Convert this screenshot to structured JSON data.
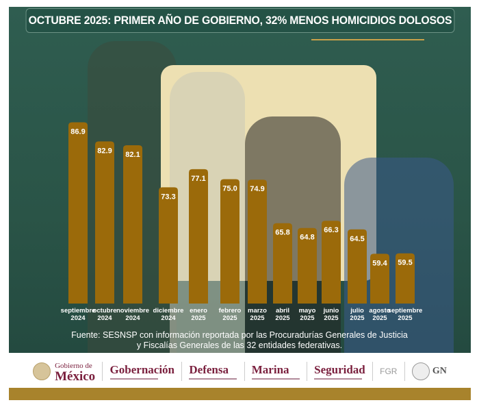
{
  "title": "OCTUBRE 2025: PRIMER AÑO DE GOBIERNO, 32% MENOS HOMICIDIOS DOLOSOS",
  "colors": {
    "bar": "#9b6a0a",
    "background": "#2d5a4c",
    "panel": "#ede0b2",
    "accent_gold": "#a8832c"
  },
  "chart_data": {
    "type": "bar",
    "title": "",
    "categories": [
      "septiembre 2024",
      "octubre 2024",
      "noviembre 2024",
      "diciembre 2024",
      "enero 2025",
      "febrero 2025",
      "marzo 2025",
      "abril 2025",
      "mayo 2025",
      "junio 2025",
      "julio 2025",
      "agosto 2025",
      "septiembre 2025"
    ],
    "category_lines": [
      [
        "septiembre",
        "2024"
      ],
      [
        "octubre",
        "2024"
      ],
      [
        "noviembre",
        "2024"
      ],
      [
        "diciembre",
        "2024"
      ],
      [
        "enero",
        "2025"
      ],
      [
        "febrero",
        "2025"
      ],
      [
        "marzo",
        "2025"
      ],
      [
        "abril",
        "2025"
      ],
      [
        "mayo",
        "2025"
      ],
      [
        "junio",
        "2025"
      ],
      [
        "julio",
        "2025"
      ],
      [
        "agosto",
        "2025"
      ],
      [
        "septiembre",
        "2025"
      ]
    ],
    "values": [
      86.9,
      82.9,
      82.1,
      73.3,
      77.1,
      75.0,
      74.9,
      65.8,
      64.8,
      66.3,
      64.5,
      59.4,
      59.5
    ],
    "value_labels": [
      "86.9",
      "82.9",
      "82.1",
      "73.3",
      "77.1",
      "75.0",
      "74.9",
      "65.8",
      "64.8",
      "66.3",
      "64.5",
      "59.4",
      "59.5"
    ],
    "ylim": [
      49,
      95
    ],
    "xlabel": "",
    "ylabel": "",
    "grid": false,
    "legend": "none"
  },
  "source": {
    "line1": "Fuente: SESNSP con información reportada por las Procuradurías Generales de Justicia",
    "line2": "y Fiscalías Generales de las 32 entidades federativas."
  },
  "footer": {
    "gob_line1": "Gobierno de",
    "gob_line2": "México",
    "logos": [
      "Gobernación",
      "Defensa",
      "Marina",
      "Seguridad",
      "FGR",
      "GN"
    ]
  }
}
